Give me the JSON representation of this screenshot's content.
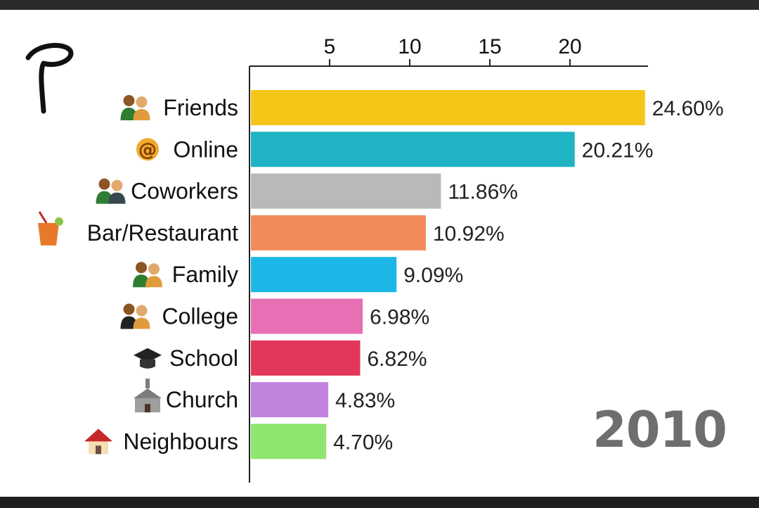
{
  "year": "2010",
  "chart_data": {
    "type": "bar",
    "orientation": "horizontal",
    "categories": [
      "Friends",
      "Online",
      "Coworkers",
      "Bar/Restaurant",
      "Family",
      "College",
      "School",
      "Church",
      "Neighbours"
    ],
    "values": [
      24.6,
      20.21,
      11.86,
      10.92,
      9.09,
      6.98,
      6.82,
      4.83,
      4.7
    ],
    "value_labels": [
      "24.60%",
      "20.21%",
      "11.86%",
      "10.92%",
      "9.09%",
      "6.98%",
      "6.82%",
      "4.83%",
      "4.70%"
    ],
    "colors": [
      "#f5c518",
      "#1fb3c3",
      "#b9b9b9",
      "#f28a5a",
      "#1cb7e6",
      "#e86fb4",
      "#e2365a",
      "#c184de",
      "#8ee56f"
    ],
    "icons": [
      "couple-icon",
      "at-sign-icon",
      "coworkers-icon",
      "cocktail-icon",
      "family-icon",
      "graduate-icon",
      "graduation-cap-icon",
      "church-icon",
      "house-icon"
    ],
    "xticks": [
      5,
      10,
      15,
      20
    ],
    "xlim": [
      0,
      25
    ],
    "axis_position": "top",
    "grid": false,
    "legend": "none"
  }
}
